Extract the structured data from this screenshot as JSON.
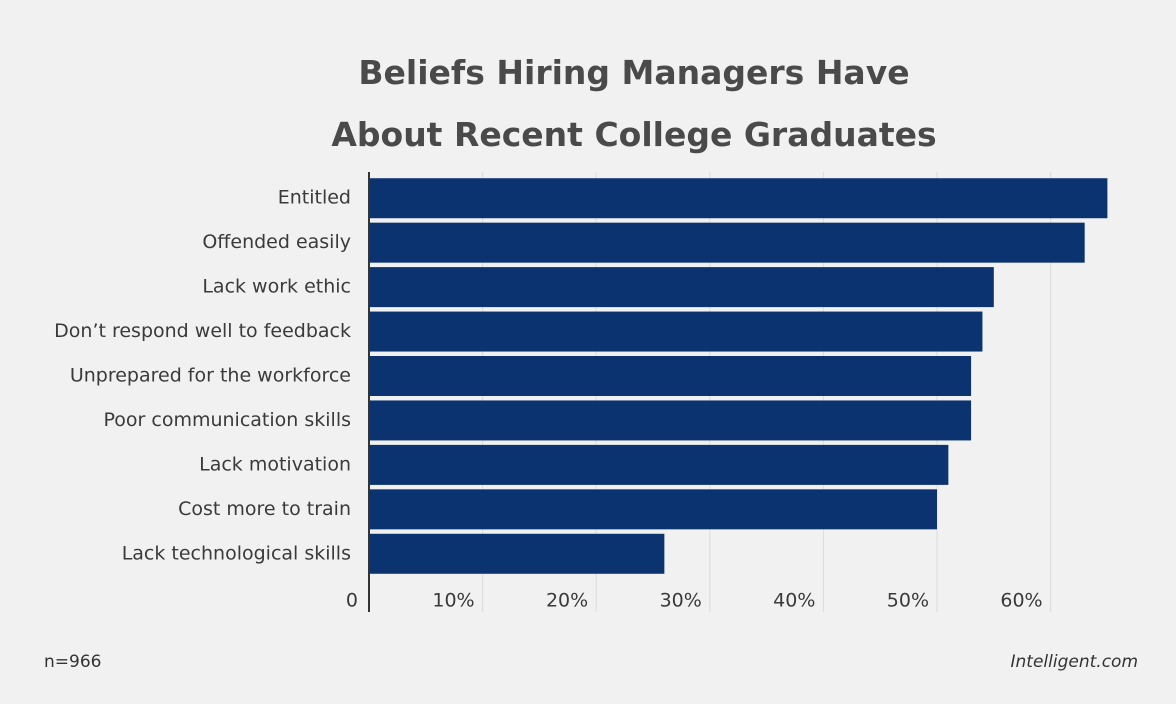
{
  "chart_data": {
    "type": "bar",
    "orientation": "horizontal",
    "title": "Beliefs Hiring Managers Have About Recent College Graduates",
    "categories": [
      "Entitled",
      "Offended easily",
      "Lack work ethic",
      "Don’t respond well to feedback",
      "Unprepared for the workforce",
      "Poor communication skills",
      "Lack motivation",
      "Cost more to train",
      "Lack technological skills"
    ],
    "values": [
      65,
      63,
      55,
      54,
      53,
      53,
      51,
      50,
      26
    ],
    "color": "#0b3370",
    "xlim": [
      0,
      65
    ],
    "xticks": [
      0,
      {
        "value": 10,
        "label": "10%"
      },
      {
        "value": 20,
        "label": "20%"
      },
      {
        "value": 30,
        "label": "30%"
      },
      {
        "value": 40,
        "label": "40%"
      },
      {
        "value": 50,
        "label": "50%"
      },
      {
        "value": 60,
        "label": "60%"
      }
    ],
    "grid": true,
    "note": "n=966",
    "source": "Intelligent.com"
  }
}
